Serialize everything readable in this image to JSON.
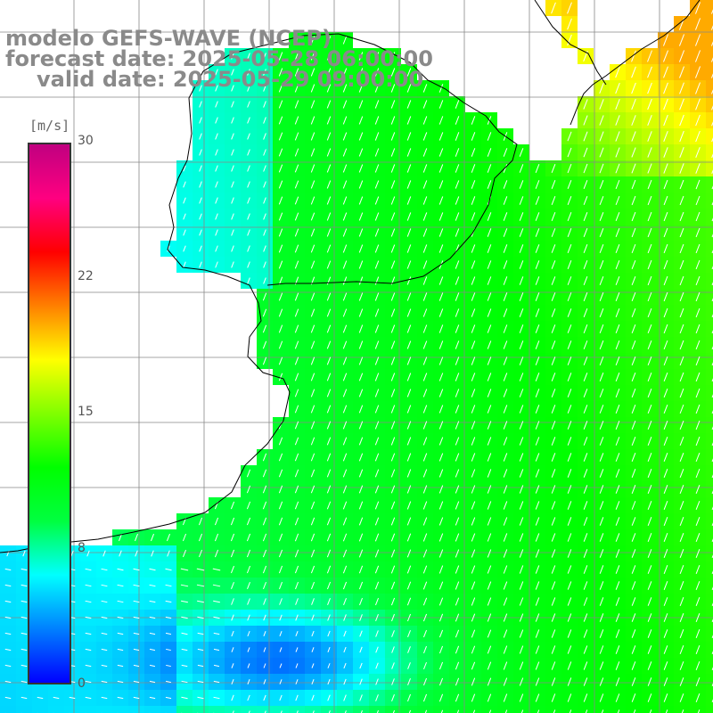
{
  "titles": {
    "model": "modelo GEFS-WAVE (NCEP)",
    "forecast": "forecast date: 2025-05-28 06:00:00",
    "valid": "valid date: 2025-05-29 09:00:00"
  },
  "colorbar": {
    "unit": "[m/s]",
    "ticks": [
      {
        "value": 30,
        "label": "30"
      },
      {
        "value": 22,
        "label": "22"
      },
      {
        "value": 15,
        "label": "15"
      },
      {
        "value": 8,
        "label": "8"
      },
      {
        "value": 0,
        "label": "0"
      }
    ],
    "range": [
      0,
      30
    ],
    "colors": [
      "#0000ff",
      "#0080ff",
      "#00ffff",
      "#00ff40",
      "#00ff00",
      "#80ff00",
      "#ffff00",
      "#ff8000",
      "#ff0000",
      "#ff0080",
      "#c00080"
    ]
  },
  "map_style": {
    "land_color": "#ffffff",
    "coast_color": "#000000",
    "grid_color": "#888888",
    "arrow_color": "#ffffff"
  }
}
